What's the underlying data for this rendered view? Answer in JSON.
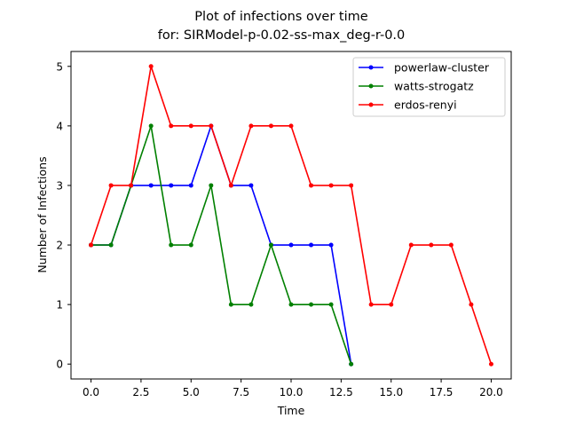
{
  "chart_data": {
    "type": "line",
    "title": "Plot of infections over time",
    "subtitle": "for: SIRModel-p-0.02-ss-max_deg-r-0.0",
    "xlabel": "Time",
    "ylabel": "Number of Infections",
    "xlim": [
      -1.0,
      21.0
    ],
    "ylim": [
      -0.25,
      5.25
    ],
    "xticks": [
      0.0,
      2.5,
      5.0,
      7.5,
      10.0,
      12.5,
      15.0,
      17.5,
      20.0
    ],
    "xtick_labels": [
      "0.0",
      "2.5",
      "5.0",
      "7.5",
      "10.0",
      "12.5",
      "15.0",
      "17.5",
      "20.0"
    ],
    "yticks": [
      0,
      1,
      2,
      3,
      4,
      5
    ],
    "ytick_labels": [
      "0",
      "1",
      "2",
      "3",
      "4",
      "5"
    ],
    "grid": false,
    "legend_position": "top-right",
    "series": [
      {
        "name": "powerlaw-cluster",
        "color": "#0000ff",
        "x": [
          0,
          1,
          2,
          3,
          4,
          5,
          6,
          7,
          8,
          9,
          10,
          11,
          12,
          13
        ],
        "y": [
          2,
          2,
          3,
          3,
          3,
          3,
          4,
          3,
          3,
          2,
          2,
          2,
          2,
          0
        ]
      },
      {
        "name": "watts-strogatz",
        "color": "#008000",
        "x": [
          0,
          1,
          2,
          3,
          4,
          5,
          6,
          7,
          8,
          9,
          10,
          11,
          12,
          13
        ],
        "y": [
          2,
          2,
          3,
          4,
          2,
          2,
          3,
          1,
          1,
          2,
          1,
          1,
          1,
          0
        ]
      },
      {
        "name": "erdos-renyi",
        "color": "#ff0000",
        "x": [
          0,
          1,
          2,
          3,
          4,
          5,
          6,
          7,
          8,
          9,
          10,
          11,
          12,
          13,
          14,
          15,
          16,
          17,
          18,
          19,
          20
        ],
        "y": [
          2,
          3,
          3,
          5,
          4,
          4,
          4,
          3,
          4,
          4,
          4,
          3,
          3,
          3,
          1,
          1,
          2,
          2,
          2,
          1,
          0
        ]
      }
    ]
  }
}
